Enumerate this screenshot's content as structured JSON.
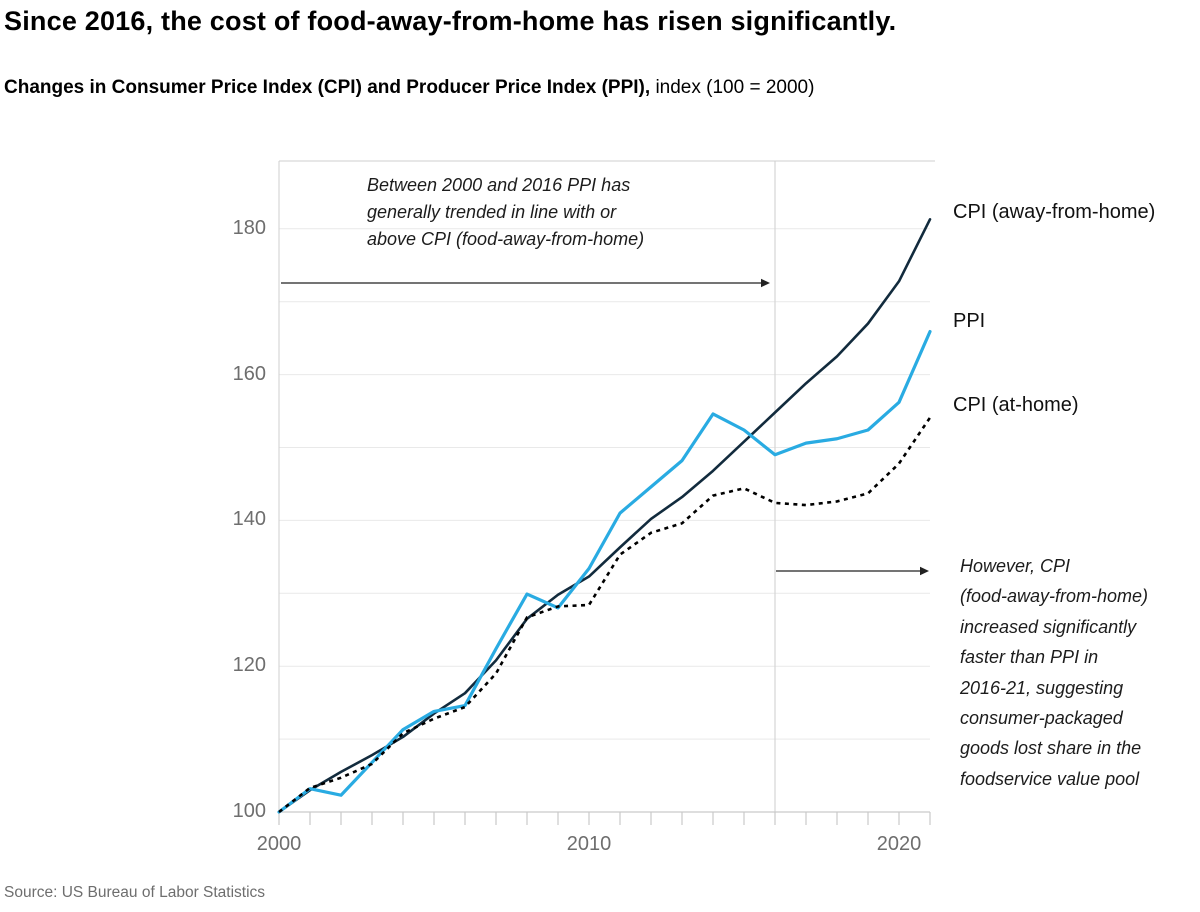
{
  "title": "Since 2016, the cost of food-away-from-home has risen significantly.",
  "subtitle_bold": "Changes in Consumer Price Index (CPI) and Producer Price Index (PPI),",
  "subtitle_regular": " index (100 = 2000)",
  "source": "Source: US Bureau of Labor Statistics",
  "annotations": {
    "left": {
      "lines": [
        "Between 2000 and 2016 PPI has",
        "generally trended in line with or",
        "above CPI (food-away-from-home)"
      ]
    },
    "right": {
      "lines": [
        "However, CPI",
        "(food-away-from-home)",
        "increased significantly",
        "faster than PPI in",
        "2016-21, suggesting",
        "consumer-packaged",
        "goods lost share in the",
        "foodservice value pool"
      ]
    }
  },
  "chart_data": {
    "type": "line",
    "x": [
      2000,
      2001,
      2002,
      2003,
      2004,
      2005,
      2006,
      2007,
      2008,
      2009,
      2010,
      2011,
      2012,
      2013,
      2014,
      2015,
      2016,
      2017,
      2018,
      2019,
      2020,
      2021
    ],
    "series": [
      {
        "name": "CPI (away-from-home)",
        "color": "#122b3d",
        "style": "solid",
        "width": 2.6,
        "values": [
          100,
          103,
          105.5,
          107.8,
          110.3,
          113.5,
          116.3,
          120.8,
          126.5,
          129.8,
          132.3,
          136.3,
          140.2,
          143.2,
          146.8,
          150.8,
          154.8,
          158.8,
          162.5,
          167,
          172.8,
          181.3
        ]
      },
      {
        "name": "PPI",
        "color": "#29abe2",
        "style": "solid",
        "width": 3.2,
        "values": [
          100,
          103.2,
          102.3,
          106.8,
          111.3,
          113.8,
          114.6,
          122.4,
          129.9,
          128,
          133.4,
          141,
          144.6,
          148.2,
          154.6,
          152.4,
          149,
          150.6,
          151.2,
          152.4,
          156.2,
          165.9
        ]
      },
      {
        "name": "CPI (at-home)",
        "color": "#000000",
        "style": "dashed",
        "width": 2.6,
        "values": [
          100,
          103.3,
          104.7,
          106.6,
          110.8,
          112.8,
          114.4,
          119,
          126.7,
          128.2,
          128.4,
          135.3,
          138.3,
          139.6,
          143.4,
          144.4,
          142.4,
          142.1,
          142.6,
          143.7,
          147.8,
          154.1
        ]
      }
    ],
    "xtick_labels": [
      2000,
      2010,
      2020
    ],
    "ytick_labels": [
      100,
      120,
      140,
      160,
      180
    ],
    "gridlines_y": [
      110,
      120,
      130,
      140,
      150,
      160,
      170,
      180
    ],
    "reference_line_x": 2016,
    "xlim": [
      2000,
      2021
    ],
    "ylim": [
      100,
      189
    ],
    "index_note": "100 = 2000",
    "legend_position": "right",
    "grid": true
  }
}
